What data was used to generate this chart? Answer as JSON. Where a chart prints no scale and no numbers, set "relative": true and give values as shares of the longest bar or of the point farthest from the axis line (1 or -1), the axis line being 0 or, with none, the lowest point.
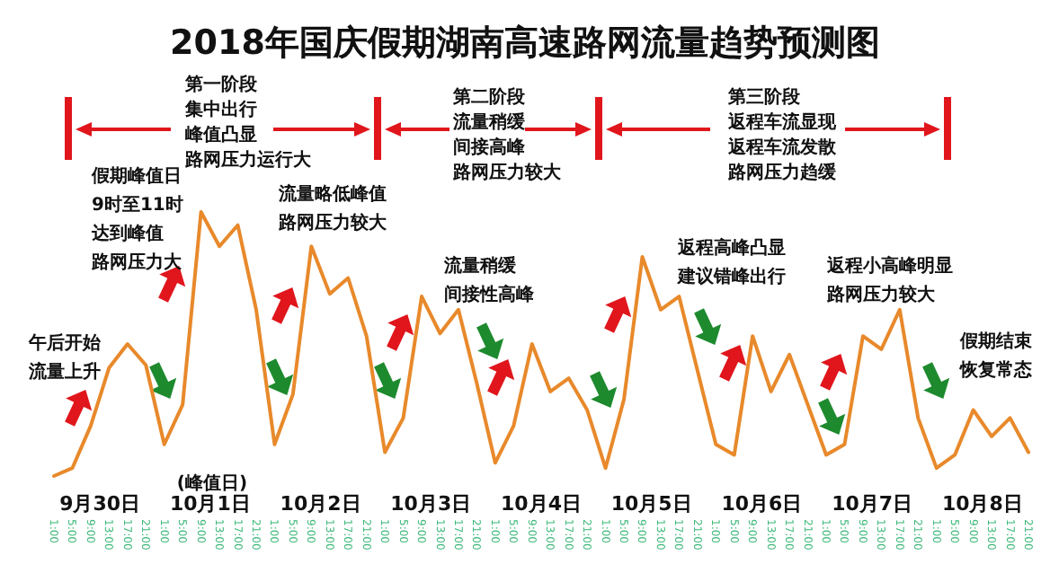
{
  "chart_data": {
    "type": "line",
    "title": "2018年国庆假期湖南高速路网流量趋势预测图",
    "relative": true,
    "categories": [
      "1:00",
      "5:00",
      "9:00",
      "13:00",
      "17:00",
      "21:00",
      "1:00",
      "5:00",
      "9:00",
      "13:00",
      "17:00",
      "21:00",
      "1:00",
      "5:00",
      "9:00",
      "13:00",
      "17:00",
      "21:00",
      "1:00",
      "5:00",
      "9:00",
      "13:00",
      "17:00",
      "21:00",
      "1:00",
      "5:00",
      "9:00",
      "13:00",
      "17:00",
      "21:00",
      "1:00",
      "5:00",
      "9:00",
      "13:00",
      "17:00",
      "21:00",
      "1:00",
      "5:00",
      "9:00",
      "13:00",
      "17:00",
      "21:00",
      "1:00",
      "5:00",
      "9:00",
      "13:00",
      "17:00",
      "21:00",
      "1:00",
      "5:00",
      "9:00",
      "13:00",
      "17:00",
      "21:00"
    ],
    "series": [
      {
        "color": "#e8892b",
        "values": [
          0,
          0.03,
          0.19,
          0.41,
          0.5,
          0.42,
          0.12,
          0.27,
          1,
          0.87,
          0.95,
          0.63,
          0.12,
          0.31,
          0.87,
          0.69,
          0.75,
          0.53,
          0.09,
          0.22,
          0.68,
          0.54,
          0.63,
          0.35,
          0.05,
          0.19,
          0.5,
          0.32,
          0.37,
          0.25,
          0.03,
          0.29,
          0.83,
          0.63,
          0.68,
          0.4,
          0.12,
          0.08,
          0.53,
          0.32,
          0.46,
          0.27,
          0.08,
          0.12,
          0.53,
          0.48,
          0.63,
          0.22,
          0.03,
          0.08,
          0.25,
          0.15,
          0.22,
          0.09
        ]
      }
    ],
    "annotations": [
      "第一阶段",
      "集中出行",
      "峰值凸显",
      "路网压力运行大",
      "第二阶段",
      "流量稍缓",
      "间接高峰",
      "路网压力较大",
      "第三阶段",
      "返程车流显现",
      "返程车流发散",
      "路网压力趋缓",
      "假期峰值日",
      "9时至11时",
      "达到峰值",
      "路网压力大",
      "流量略低峰值",
      "路网压力较大",
      "流量稍缓",
      "间接性高峰",
      "返程高峰凸显",
      "建议错峰出行",
      "返程小高峰明显",
      "路网压力较大",
      "假期结束",
      "恢复常态",
      "午后开始",
      "流量上升",
      "(峰值日)",
      "9月30日",
      "10月1日",
      "10月2日",
      "10月3日",
      "10月4日",
      "10月5日",
      "10月6日",
      "10月7日",
      "10月8日"
    ]
  }
}
